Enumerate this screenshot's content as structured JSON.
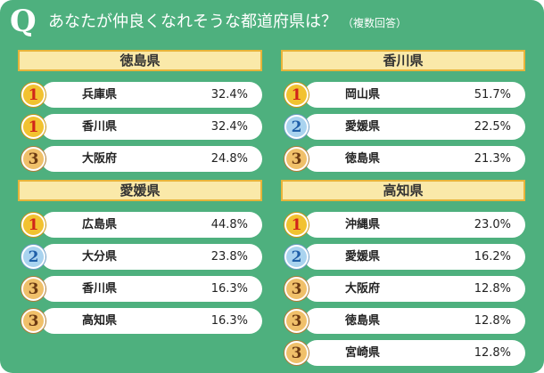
{
  "header": {
    "q": "Q",
    "question": "あなたが仲良くなれそうな都道府県は？",
    "note": "（複数回答）"
  },
  "sections": [
    {
      "title": "徳島県",
      "rows": [
        {
          "rank": "1",
          "pref": "兵庫県",
          "pct": "32.4%"
        },
        {
          "rank": "1",
          "pref": "香川県",
          "pct": "32.4%"
        },
        {
          "rank": "3",
          "pref": "大阪府",
          "pct": "24.8%"
        }
      ]
    },
    {
      "title": "香川県",
      "rows": [
        {
          "rank": "1",
          "pref": "岡山県",
          "pct": "51.7%"
        },
        {
          "rank": "2",
          "pref": "愛媛県",
          "pct": "22.5%"
        },
        {
          "rank": "3",
          "pref": "徳島県",
          "pct": "21.3%"
        }
      ]
    },
    {
      "title": "愛媛県",
      "rows": [
        {
          "rank": "1",
          "pref": "広島県",
          "pct": "44.8%"
        },
        {
          "rank": "2",
          "pref": "大分県",
          "pct": "23.8%"
        },
        {
          "rank": "3",
          "pref": "香川県",
          "pct": "16.3%"
        },
        {
          "rank": "3",
          "pref": "高知県",
          "pct": "16.3%"
        }
      ]
    },
    {
      "title": "高知県",
      "rows": [
        {
          "rank": "1",
          "pref": "沖縄県",
          "pct": "23.0%"
        },
        {
          "rank": "2",
          "pref": "愛媛県",
          "pct": "16.2%"
        },
        {
          "rank": "3",
          "pref": "大阪府",
          "pct": "12.8%"
        },
        {
          "rank": "3",
          "pref": "徳島県",
          "pct": "12.8%"
        },
        {
          "rank": "3",
          "pref": "宮崎県",
          "pct": "12.8%"
        }
      ]
    }
  ]
}
